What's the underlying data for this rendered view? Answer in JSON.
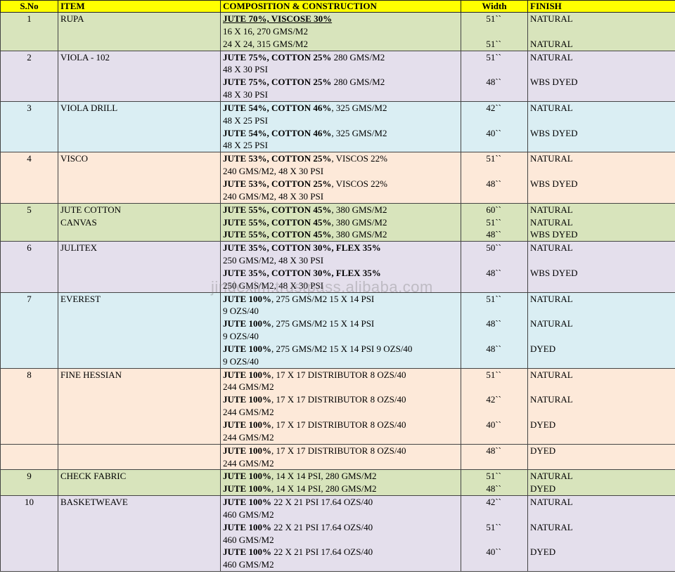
{
  "headers": {
    "sno": "S.No",
    "item": "ITEM",
    "comp": "COMPOSITION & CONSTRUCTION",
    "width": "Width",
    "finish": "FINISH"
  },
  "colors": {
    "header": "#ffff00",
    "green": "#d8e4bc",
    "purple": "#e4dfec",
    "blue": "#daeef3",
    "orange": "#fde9d9"
  },
  "rows": [
    {
      "sno": "1",
      "color": "g",
      "item": [
        "RUPA"
      ],
      "comp": [
        {
          "b": "JUTE 70%, VISCOSE 30%",
          "t": "",
          "u": true
        },
        {
          "b": "",
          "t": "16 X 16,  270 GMS/M2"
        },
        {
          "b": "",
          "t": "24 X 24, 315 GMS/M2"
        }
      ],
      "width": [
        "51``",
        "",
        "51``"
      ],
      "finish": [
        "NATURAL",
        "",
        "NATURAL"
      ]
    },
    {
      "sno": "2",
      "color": "p",
      "item": [
        "VIOLA - 102"
      ],
      "comp": [
        {
          "b": "JUTE 75%, COTTON 25%",
          "t": " 280 GMS/M2"
        },
        {
          "b": "",
          "t": "48 X 30 PSI"
        },
        {
          "b": "JUTE 75%, COTTON 25%",
          "t": " 280 GMS/M2"
        },
        {
          "b": "",
          "t": "48 X 30 PSI"
        }
      ],
      "width": [
        "51``",
        "",
        "48``",
        ""
      ],
      "finish": [
        "NATURAL",
        "",
        "WBS DYED",
        ""
      ]
    },
    {
      "sno": "3",
      "color": "b",
      "item": [
        "VIOLA DRILL"
      ],
      "comp": [
        {
          "b": "JUTE 54%, COTTON 46%",
          "t": ", 325 GMS/M2"
        },
        {
          "b": "",
          "t": "48 X 25  PSI"
        },
        {
          "b": "JUTE 54%, COTTON 46%",
          "t": ", 325 GMS/M2"
        },
        {
          "b": "",
          "t": "48 X 25  PSI"
        }
      ],
      "width": [
        "42``",
        "",
        "40``",
        ""
      ],
      "finish": [
        "NATURAL",
        "",
        "WBS DYED",
        ""
      ]
    },
    {
      "sno": "4",
      "color": "o",
      "item": [
        "VISCO"
      ],
      "comp": [
        {
          "b": "JUTE 53%, COTTON 25%",
          "t": ", VISCOS 22%"
        },
        {
          "b": "",
          "t": "240 GMS/M2, 48 X 30 PSI"
        },
        {
          "b": "JUTE 53%, COTTON 25%",
          "t": ", VISCOS 22%"
        },
        {
          "b": "",
          "t": "240 GMS/M2, 48 X 30 PSI"
        }
      ],
      "width": [
        "51``",
        "",
        "48``",
        ""
      ],
      "finish": [
        "NATURAL",
        "",
        "WBS DYED",
        ""
      ]
    },
    {
      "sno": "5",
      "color": "g",
      "item": [
        "JUTE COTTON",
        "CANVAS"
      ],
      "comp": [
        {
          "b": "JUTE 55%, COTTON 45%",
          "t": ", 380 GMS/M2"
        },
        {
          "b": "JUTE 55%, COTTON 45%",
          "t": ", 380 GMS/M2"
        },
        {
          "b": "JUTE 55%, COTTON 45%",
          "t": ", 380 GMS/M2"
        }
      ],
      "width": [
        "60``",
        "51``",
        "48``"
      ],
      "finish": [
        "NATURAL",
        "NATURAL",
        "WBS DYED"
      ]
    },
    {
      "sno": "6",
      "color": "p",
      "item": [
        "JULITEX"
      ],
      "comp": [
        {
          "b": "JUTE 35%, COTTON 30%, FLEX 35%",
          "t": ""
        },
        {
          "b": "",
          "t": "250 GMS/M2, 48 X 30 PSI"
        },
        {
          "b": "JUTE 35%, COTTON 30%, FLEX 35%",
          "t": ""
        },
        {
          "b": "",
          "t": "250 GMS/M2, 48 X 30 PSI"
        }
      ],
      "width": [
        "50``",
        "",
        "48``",
        ""
      ],
      "finish": [
        "NATURAL",
        "",
        "WBS DYED",
        ""
      ]
    },
    {
      "sno": "7",
      "color": "b",
      "item": [
        "EVEREST"
      ],
      "comp": [
        {
          "b": "JUTE 100%",
          "t": ", 275 GMS/M2 15 X 14 PSI"
        },
        {
          "b": "",
          "t": "9 OZS/40"
        },
        {
          "b": "JUTE 100%",
          "t": ", 275 GMS/M2 15 X 14 PSI"
        },
        {
          "b": "",
          "t": "9 OZS/40"
        },
        {
          "b": "JUTE 100%",
          "t": ", 275 GMS/M2 15 X 14 PSI 9 OZS/40"
        },
        {
          "b": "",
          "t": "9 OZS/40"
        }
      ],
      "width": [
        "51``",
        "",
        "48``",
        "",
        "48``",
        ""
      ],
      "finish": [
        "NATURAL",
        "",
        "NATURAL",
        "",
        "DYED",
        ""
      ]
    },
    {
      "sno": "8",
      "color": "o",
      "item": [
        "FINE HESSIAN"
      ],
      "comp": [
        {
          "b": "JUTE 100%",
          "t": ", 17 X 17 DISTRIBUTOR 8 OZS/40"
        },
        {
          "b": "",
          "t": "244 GMS/M2"
        },
        {
          "b": "JUTE 100%",
          "t": ", 17 X 17 DISTRIBUTOR 8 OZS/40"
        },
        {
          "b": "",
          "t": "244 GMS/M2"
        },
        {
          "b": "JUTE 100%",
          "t": ", 17 X 17 DISTRIBUTOR 8 OZS/40"
        },
        {
          "b": "",
          "t": "244 GMS/M2"
        }
      ],
      "width": [
        "51``",
        "",
        "42``",
        "",
        "40``",
        ""
      ],
      "finish": [
        "NATURAL",
        "",
        "NATURAL",
        "",
        "DYED",
        ""
      ]
    },
    {
      "sno": "",
      "color": "o",
      "item": [
        ""
      ],
      "comp": [
        {
          "b": "JUTE 100%",
          "t": ", 17 X 17 DISTRIBUTOR 8 OZS/40"
        },
        {
          "b": "",
          "t": "244 GMS/M2"
        }
      ],
      "width": [
        "48``",
        ""
      ],
      "finish": [
        "DYED",
        ""
      ]
    },
    {
      "sno": "9",
      "color": "g",
      "item": [
        "CHECK FABRIC"
      ],
      "comp": [
        {
          "b": "JUTE 100%",
          "t": ", 14 X 14 PSI, 280 GMS/M2"
        },
        {
          "b": "JUTE 100%",
          "t": ", 14 X 14 PSI, 280 GMS/M2"
        }
      ],
      "width": [
        "51``",
        "48``"
      ],
      "finish": [
        "NATURAL",
        "DYED"
      ]
    },
    {
      "sno": "10",
      "color": "p",
      "item": [
        "BASKETWEAVE"
      ],
      "comp": [
        {
          "b": "JUTE 100%",
          "t": " 22 X 21 PSI 17.64 OZS/40"
        },
        {
          "b": "",
          "t": "460 GMS/M2"
        },
        {
          "b": "JUTE 100%",
          "t": " 22 X 21 PSI 17.64 OZS/40"
        },
        {
          "b": "",
          "t": "460 GMS/M2"
        },
        {
          "b": "JUTE 100%",
          "t": " 22 X 21 PSI 17.64 OZS/40"
        },
        {
          "b": "",
          "t": "460 GMS/M2"
        }
      ],
      "width": [
        "42``",
        "",
        "51``",
        "",
        "40``",
        ""
      ],
      "finish": [
        "NATURAL",
        "",
        "NATURAL",
        "",
        "DYED",
        ""
      ]
    }
  ],
  "watermark": "jindexim.trustpass.alibaba.com"
}
